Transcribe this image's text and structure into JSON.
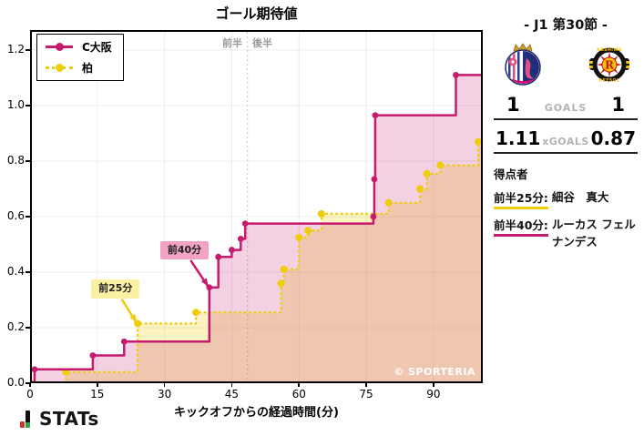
{
  "chart_data": {
    "type": "line",
    "subtype": "step-cumulative-xg",
    "title": "ゴール期待値",
    "xlabel": "キックオフからの経過時間(分)",
    "x_ticks": [
      0,
      15,
      30,
      45,
      60,
      75,
      90
    ],
    "y_ticks": [
      0.0,
      0.2,
      0.4,
      0.6,
      0.8,
      1.0,
      1.2
    ],
    "xlim": [
      0,
      101
    ],
    "ylim": [
      0,
      1.272
    ],
    "grid": true,
    "halftime_x": 48.5,
    "half_labels": [
      "前半",
      "後半"
    ],
    "series": [
      {
        "name": "C大阪",
        "color": "#C51A6E",
        "fill": "rgba(197,26,110,0.20)",
        "style": "solid",
        "final_xg": 1.11,
        "points": [
          [
            0,
            0
          ],
          [
            1,
            0.05
          ],
          [
            14,
            0.1
          ],
          [
            21,
            0.15
          ],
          [
            40,
            0.345
          ],
          [
            42,
            0.455
          ],
          [
            45,
            0.48
          ],
          [
            47,
            0.52
          ],
          [
            48,
            0.575
          ],
          [
            76.6,
            0.6
          ],
          [
            76.8,
            0.735
          ],
          [
            77,
            0.965
          ],
          [
            95,
            1.11
          ]
        ],
        "end_x": 101
      },
      {
        "name": "柏",
        "color": "#EFCD0A",
        "fill": "rgba(240,206,10,0.25)",
        "style": "dotted",
        "final_xg": 0.87,
        "points": [
          [
            0,
            0
          ],
          [
            8,
            0.04
          ],
          [
            24,
            0.215
          ],
          [
            37,
            0.255
          ],
          [
            56,
            0.36
          ],
          [
            56.6,
            0.41
          ],
          [
            60,
            0.525
          ],
          [
            62,
            0.55
          ],
          [
            65,
            0.61
          ],
          [
            80,
            0.65
          ],
          [
            87,
            0.7
          ],
          [
            88.5,
            0.755
          ],
          [
            91.5,
            0.785
          ],
          [
            100,
            0.87
          ]
        ],
        "end_x": 101
      }
    ],
    "annotations": [
      {
        "text": "前40分",
        "bg": "#F2A3C5",
        "series": 0,
        "point": [
          40,
          0.345
        ],
        "box_offset": [
          -54,
          -29
        ]
      },
      {
        "text": "前25分",
        "bg": "#FBF0A4",
        "series": 1,
        "point": [
          24,
          0.215
        ],
        "box_offset": [
          -51,
          -26
        ]
      }
    ]
  },
  "watermark": "© SPORTERIA",
  "panel": {
    "title": "- J1 第30節 -",
    "home_logo": "cerezo-osaka-crest",
    "away_logo": "kashiwa-reysol-crest",
    "goals": {
      "home": "1",
      "label": "GOALS",
      "away": "1"
    },
    "xgoals": {
      "home": "1.11",
      "label": "xGOALS",
      "away": "0.87"
    },
    "scorers_header": "得点者",
    "scorers": [
      {
        "time": "前半25分:",
        "name": "細谷　真大",
        "team": "柏",
        "underline_color": "#EFCD0A"
      },
      {
        "time": "前半40分:",
        "name": "ルーカス フェルナンデス",
        "team": "C大阪",
        "underline_color": "#C51A6E"
      }
    ]
  },
  "footer": {
    "brand": "STATs"
  }
}
